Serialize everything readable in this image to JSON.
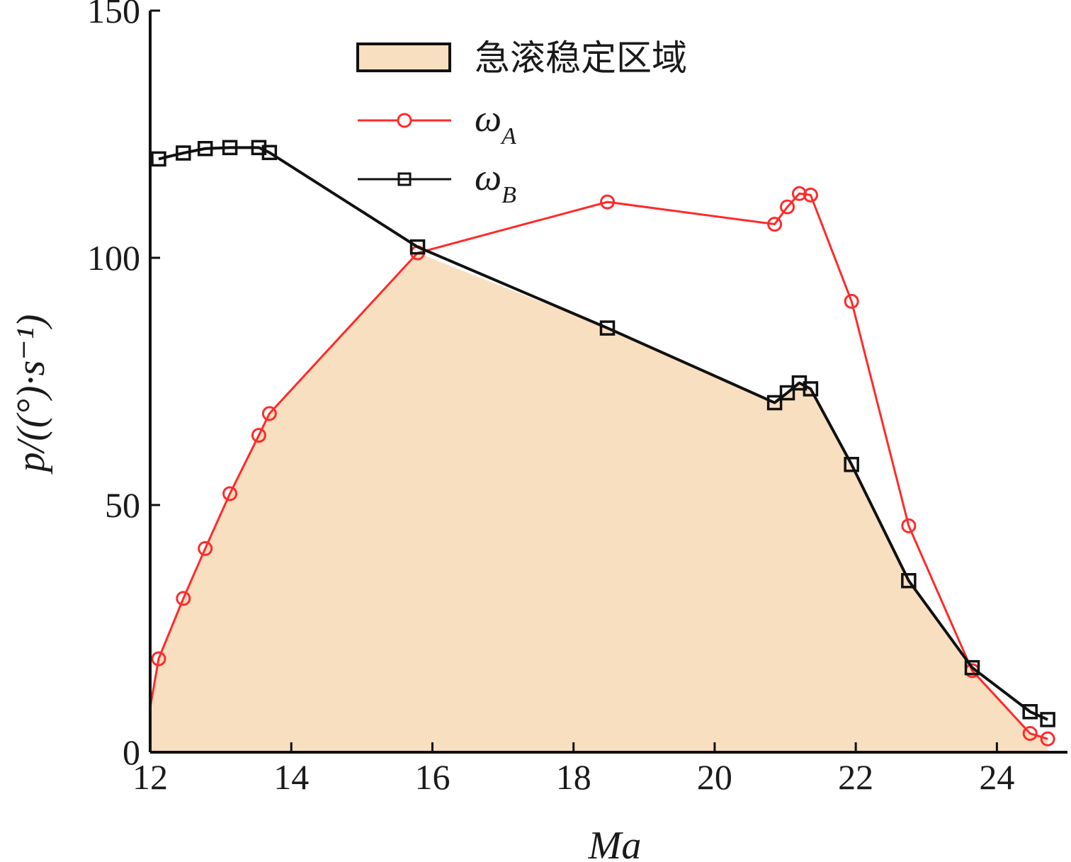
{
  "colors": {
    "region_fill": "#f8dfc0",
    "series_a": "#ff2a2a",
    "series_b": "#111111",
    "axis": "#111111"
  },
  "chart_data": {
    "type": "line",
    "xlabel": "Ma",
    "ylabel": "p/((°)·s⁻¹)",
    "xlim": [
      12,
      25
    ],
    "ylim": [
      0,
      150
    ],
    "xticks": [
      "12",
      "14",
      "16",
      "18",
      "20",
      "22",
      "24"
    ],
    "yticks": [
      "0",
      "50",
      "100",
      "150"
    ],
    "legend_position": "top-center",
    "region": {
      "name": "急滚稳定区域",
      "description_of_boundary": "min of the two series"
    },
    "series": [
      {
        "name": "ω",
        "name_subscript": "A",
        "marker": "circle",
        "x": [
          12.12,
          12.47,
          12.78,
          13.13,
          13.54,
          13.69,
          15.79,
          18.48,
          20.85,
          21.03,
          21.2,
          21.36,
          21.94,
          22.75,
          23.65,
          24.47,
          24.72
        ],
        "y": [
          18.9,
          31.1,
          41.2,
          52.3,
          64.1,
          68.5,
          101.0,
          111.3,
          106.8,
          110.3,
          113.0,
          112.7,
          91.2,
          45.8,
          16.5,
          3.8,
          2.7
        ]
      },
      {
        "name": "ω",
        "name_subscript": "B",
        "marker": "square",
        "x": [
          12.12,
          12.47,
          12.78,
          13.13,
          13.54,
          13.69,
          15.79,
          18.48,
          20.85,
          21.03,
          21.2,
          21.36,
          21.94,
          22.75,
          23.65,
          24.47,
          24.72
        ],
        "y": [
          120.0,
          121.2,
          122.1,
          122.3,
          122.3,
          121.3,
          102.2,
          85.8,
          70.7,
          72.7,
          74.7,
          73.5,
          58.2,
          34.7,
          17.1,
          8.2,
          6.6
        ]
      }
    ]
  }
}
